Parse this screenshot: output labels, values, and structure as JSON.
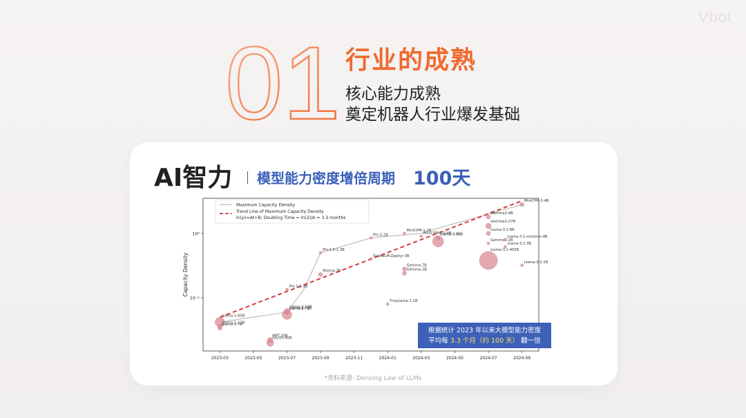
{
  "watermark": "Vbot",
  "section": {
    "number": "01",
    "title": "行业的成熟",
    "subtitle_1": "核心能力成熟",
    "subtitle_2": "奠定机器人行业爆发基础"
  },
  "card": {
    "title": "AI智力",
    "subtitle": "模型能力密度增倍周期",
    "highlight": "100天",
    "source": "*资料来源: Densing Law of LLMs",
    "note_line1": "根据统计 2023 年以来大模型能力密度",
    "note_line2_prefix": "平均每 ",
    "note_line2_highlight": "3.3 个月（约 100 天）",
    "note_line2_suffix": " 翻一倍"
  },
  "colors": {
    "accent_orange": "#ef6a2e",
    "accent_blue": "#3b5fb8",
    "trend_red": "#d43c3c",
    "bubble": "#d98c94"
  },
  "chart_data": {
    "type": "scatter",
    "ylabel": "Capacity Density",
    "y_scale": "log",
    "ylim": [
      0.015,
      3.5
    ],
    "x_ticks": [
      "2023-03",
      "2023-05",
      "2023-07",
      "2023-09",
      "2023-11",
      "2024-01",
      "2024-03",
      "2024-05",
      "2024-07",
      "2024-09"
    ],
    "y_ticks": [
      "10⁰",
      "10⁻¹"
    ],
    "xlim": [
      "2023-02",
      "2024-10"
    ],
    "legend": {
      "position": "top-left",
      "entries": [
        {
          "label": "Maximum Capacity Density",
          "style": "line-gray"
        },
        {
          "label": "Trend Line of Maximum Capacity Density",
          "style": "dashed-red"
        },
        {
          "label": "ln(ρ)=At+B; Doubling Time = ln(2)/A = 3.3 months",
          "style": "text"
        }
      ]
    },
    "max_density_line": [
      {
        "x": "2023-03",
        "y": 0.042
      },
      {
        "x": "2023-07",
        "y": 0.06
      },
      {
        "x": "2023-08",
        "y": 0.135
      },
      {
        "x": "2023-09",
        "y": 0.5
      },
      {
        "x": "2023-12",
        "y": 0.85
      },
      {
        "x": "2024-03",
        "y": 1.0
      },
      {
        "x": "2024-04",
        "y": 1.2
      },
      {
        "x": "2024-09",
        "y": 2.8
      }
    ],
    "trend_line": [
      {
        "x": "2023-03",
        "y": 0.05
      },
      {
        "x": "2024-09",
        "y": 3.2
      }
    ],
    "points": [
      {
        "label": "Llama-1-65B",
        "x": "2023-03",
        "y": 0.042,
        "size": 7
      },
      {
        "label": "Llama-1-13B",
        "x": "2023-03",
        "y": 0.036,
        "size": 3
      },
      {
        "label": "Llama-1-7B",
        "x": "2023-03",
        "y": 0.034,
        "size": 3
      },
      {
        "label": "MPT-30B",
        "x": "2023-06",
        "y": 0.022,
        "size": 4
      },
      {
        "label": "Falcon-40B",
        "x": "2023-06",
        "y": 0.02,
        "size": 5
      },
      {
        "label": "Llama-2-7B",
        "x": "2023-07",
        "y": 0.06,
        "size": 3
      },
      {
        "label": "Llama-2-70B",
        "x": "2023-07",
        "y": 0.055,
        "size": 7
      },
      {
        "label": "Llama-2-13B",
        "x": "2023-07",
        "y": 0.062,
        "size": 4
      },
      {
        "label": "Phi-1-1.3B",
        "x": "2023-07",
        "y": 0.135,
        "size": 2
      },
      {
        "label": "Phi-1.5-1.3B",
        "x": "2023-09",
        "y": 0.5,
        "size": 2
      },
      {
        "label": "Mistral-7B",
        "x": "2023-09",
        "y": 0.23,
        "size": 3
      },
      {
        "label": "StableLM-Zephyr-3B",
        "x": "2023-12",
        "y": 0.4,
        "size": 2
      },
      {
        "label": "Phi-2-2B",
        "x": "2023-12",
        "y": 0.85,
        "size": 2
      },
      {
        "label": "TinyLlama-1.1B",
        "x": "2024-01",
        "y": 0.08,
        "size": 2
      },
      {
        "label": "Gemma-7B",
        "x": "2024-02",
        "y": 0.28,
        "size": 3
      },
      {
        "label": "Gemma-2B",
        "x": "2024-02",
        "y": 0.24,
        "size": 3
      },
      {
        "label": "MiniCPM-1-2B",
        "x": "2024-02",
        "y": 1.0,
        "size": 2
      },
      {
        "label": "MiniCPM-1-2.4B",
        "x": "2024-03",
        "y": 0.9,
        "size": 2
      },
      {
        "label": "Llama-3-70B",
        "x": "2024-04",
        "y": 0.75,
        "size": 8
      },
      {
        "label": "Llama-3-8B",
        "x": "2024-04",
        "y": 0.85,
        "size": 3
      },
      {
        "label": "Llama-3.1-8B",
        "x": "2024-07",
        "y": 1.0,
        "size": 3
      },
      {
        "label": "Gemma2-9B",
        "x": "2024-07",
        "y": 1.8,
        "size": 3
      },
      {
        "label": "Gemma2-27B",
        "x": "2024-07",
        "y": 1.3,
        "size": 4
      },
      {
        "label": "Gemma2-2B",
        "x": "2024-07",
        "y": 0.7,
        "size": 2
      },
      {
        "label": "Llama-3.1-minitron-4B",
        "x": "2024-08",
        "y": 0.8,
        "size": 2
      },
      {
        "label": "Llama-3.1-405B",
        "x": "2024-07",
        "y": 0.38,
        "size": 13
      },
      {
        "label": "Llama-3.2-3B",
        "x": "2024-08",
        "y": 0.62,
        "size": 2
      },
      {
        "label": "Llama-3.2-1B",
        "x": "2024-09",
        "y": 0.32,
        "size": 2
      },
      {
        "label": "MiniCPM-3-4B",
        "x": "2024-09",
        "y": 2.8,
        "size": 3
      }
    ]
  }
}
